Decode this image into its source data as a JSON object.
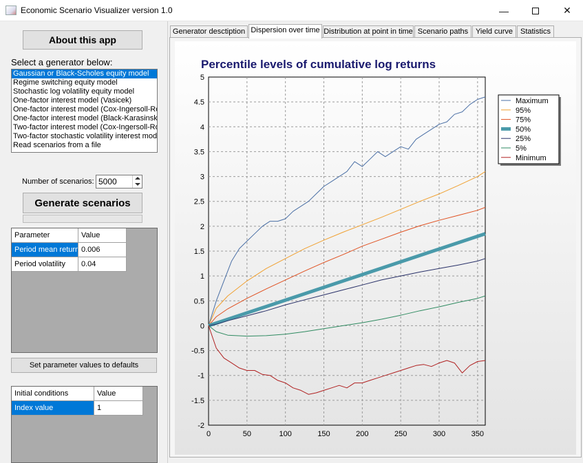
{
  "window": {
    "title": "Economic Scenario Visualizer version 1.0",
    "icon": "chart-app-icon",
    "controls": [
      "minimize",
      "maximize",
      "close"
    ]
  },
  "sidebar": {
    "about_label": "About this app",
    "select_label": "Select a generator below:",
    "generators": [
      "Gaussian or Black-Scholes equity model",
      "Regime switching equity model",
      "Stochastic log volatility equity model",
      "One-factor interest model (Vasicek)",
      "One-factor interest model (Cox-Ingersoll-Ross)",
      "One-factor interest model (Black-Karasinski)",
      "Two-factor interest model (Cox-Ingersoll-Ross)",
      "Two-factor stochastic volatility interest model",
      "Read scenarios from a file"
    ],
    "selected_generator": 0,
    "num_scenarios_label": "Number of scenarios:",
    "num_scenarios_value": "5000",
    "generate_label": "Generate scenarios",
    "progress": 0,
    "param_grid": {
      "headers": [
        "Parameter",
        "Value"
      ],
      "rows": [
        {
          "name": "Period mean return",
          "value": "0.006"
        },
        {
          "name": "Period volatility",
          "value": "0.04"
        }
      ]
    },
    "defaults_label": "Set parameter values to defaults",
    "init_grid": {
      "headers": [
        "Initial conditions",
        "Value"
      ],
      "rows": [
        {
          "name": "Index value",
          "value": "1"
        }
      ]
    }
  },
  "tabs": [
    {
      "label": "Generator desctiption",
      "active": false
    },
    {
      "label": "Dispersion over time",
      "active": true
    },
    {
      "label": "Distribution at point in time",
      "active": false
    },
    {
      "label": "Scenario paths",
      "active": false
    },
    {
      "label": "Yield curve",
      "active": false
    },
    {
      "label": "Statistics",
      "active": false
    }
  ],
  "chart_data": {
    "type": "line",
    "title": "Percentile levels of cumulative log returns",
    "xlabel": "",
    "ylabel": "",
    "xlim": [
      0,
      360
    ],
    "ylim": [
      -2,
      5
    ],
    "x_ticks": [
      0,
      50,
      100,
      150,
      200,
      250,
      300,
      350
    ],
    "y_ticks": [
      -2,
      -1.5,
      -1,
      -0.5,
      0,
      0.5,
      1,
      1.5,
      2,
      2.5,
      3,
      3.5,
      4,
      4.5,
      5
    ],
    "grid": true,
    "legend_position": "right",
    "series": [
      {
        "name": "Maximum",
        "color": "#4a6fa5",
        "width": 1,
        "points": [
          [
            0,
            0
          ],
          [
            10,
            0.5
          ],
          [
            20,
            0.9
          ],
          [
            30,
            1.3
          ],
          [
            40,
            1.55
          ],
          [
            50,
            1.7
          ],
          [
            60,
            1.85
          ],
          [
            70,
            2.0
          ],
          [
            80,
            2.1
          ],
          [
            90,
            2.1
          ],
          [
            100,
            2.15
          ],
          [
            110,
            2.3
          ],
          [
            120,
            2.4
          ],
          [
            130,
            2.5
          ],
          [
            140,
            2.65
          ],
          [
            150,
            2.8
          ],
          [
            160,
            2.9
          ],
          [
            170,
            3.0
          ],
          [
            180,
            3.1
          ],
          [
            190,
            3.3
          ],
          [
            200,
            3.2
          ],
          [
            210,
            3.35
          ],
          [
            220,
            3.5
          ],
          [
            230,
            3.4
          ],
          [
            240,
            3.5
          ],
          [
            250,
            3.6
          ],
          [
            260,
            3.55
          ],
          [
            270,
            3.75
          ],
          [
            280,
            3.85
          ],
          [
            290,
            3.95
          ],
          [
            300,
            4.05
          ],
          [
            310,
            4.1
          ],
          [
            320,
            4.25
          ],
          [
            330,
            4.3
          ],
          [
            340,
            4.45
          ],
          [
            350,
            4.55
          ],
          [
            360,
            4.6
          ]
        ]
      },
      {
        "name": "95%",
        "color": "#f0a030",
        "width": 1,
        "points": [
          [
            0,
            0
          ],
          [
            10,
            0.35
          ],
          [
            25,
            0.6
          ],
          [
            50,
            0.9
          ],
          [
            75,
            1.15
          ],
          [
            100,
            1.35
          ],
          [
            125,
            1.55
          ],
          [
            150,
            1.72
          ],
          [
            175,
            1.88
          ],
          [
            200,
            2.03
          ],
          [
            225,
            2.18
          ],
          [
            250,
            2.34
          ],
          [
            275,
            2.5
          ],
          [
            300,
            2.65
          ],
          [
            325,
            2.82
          ],
          [
            350,
            3.0
          ],
          [
            360,
            3.1
          ]
        ]
      },
      {
        "name": "75%",
        "color": "#e05020",
        "width": 1,
        "points": [
          [
            0,
            0
          ],
          [
            10,
            0.18
          ],
          [
            25,
            0.34
          ],
          [
            50,
            0.55
          ],
          [
            75,
            0.74
          ],
          [
            100,
            0.92
          ],
          [
            125,
            1.1
          ],
          [
            150,
            1.27
          ],
          [
            175,
            1.43
          ],
          [
            200,
            1.6
          ],
          [
            225,
            1.74
          ],
          [
            250,
            1.88
          ],
          [
            275,
            2.01
          ],
          [
            300,
            2.12
          ],
          [
            325,
            2.22
          ],
          [
            350,
            2.32
          ],
          [
            360,
            2.38
          ]
        ]
      },
      {
        "name": "50%",
        "color": "#4a9aaa",
        "width": 5,
        "points": [
          [
            0,
            0
          ],
          [
            360,
            1.85
          ]
        ]
      },
      {
        "name": "25%",
        "color": "#283068",
        "width": 1,
        "points": [
          [
            0,
            0
          ],
          [
            10,
            0.03
          ],
          [
            25,
            0.1
          ],
          [
            50,
            0.2
          ],
          [
            75,
            0.3
          ],
          [
            100,
            0.42
          ],
          [
            125,
            0.52
          ],
          [
            150,
            0.62
          ],
          [
            175,
            0.72
          ],
          [
            200,
            0.82
          ],
          [
            225,
            0.92
          ],
          [
            250,
            1.0
          ],
          [
            275,
            1.08
          ],
          [
            300,
            1.15
          ],
          [
            325,
            1.22
          ],
          [
            350,
            1.3
          ],
          [
            360,
            1.35
          ]
        ]
      },
      {
        "name": "5%",
        "color": "#2e8a60",
        "width": 1,
        "points": [
          [
            0,
            0
          ],
          [
            10,
            -0.12
          ],
          [
            25,
            -0.19
          ],
          [
            50,
            -0.21
          ],
          [
            75,
            -0.2
          ],
          [
            100,
            -0.17
          ],
          [
            125,
            -0.12
          ],
          [
            150,
            -0.06
          ],
          [
            175,
            0.0
          ],
          [
            200,
            0.06
          ],
          [
            225,
            0.13
          ],
          [
            250,
            0.21
          ],
          [
            275,
            0.3
          ],
          [
            300,
            0.38
          ],
          [
            325,
            0.47
          ],
          [
            350,
            0.55
          ],
          [
            360,
            0.6
          ]
        ]
      },
      {
        "name": "Minimum",
        "color": "#b02020",
        "width": 1,
        "points": [
          [
            0,
            0
          ],
          [
            10,
            -0.45
          ],
          [
            20,
            -0.65
          ],
          [
            30,
            -0.75
          ],
          [
            40,
            -0.85
          ],
          [
            50,
            -0.9
          ],
          [
            60,
            -0.9
          ],
          [
            70,
            -0.98
          ],
          [
            80,
            -1.0
          ],
          [
            90,
            -1.1
          ],
          [
            100,
            -1.15
          ],
          [
            110,
            -1.25
          ],
          [
            120,
            -1.3
          ],
          [
            130,
            -1.38
          ],
          [
            140,
            -1.35
          ],
          [
            150,
            -1.3
          ],
          [
            160,
            -1.25
          ],
          [
            170,
            -1.2
          ],
          [
            180,
            -1.25
          ],
          [
            190,
            -1.15
          ],
          [
            200,
            -1.15
          ],
          [
            210,
            -1.1
          ],
          [
            220,
            -1.05
          ],
          [
            230,
            -1.0
          ],
          [
            240,
            -0.95
          ],
          [
            250,
            -0.9
          ],
          [
            260,
            -0.85
          ],
          [
            270,
            -0.8
          ],
          [
            280,
            -0.78
          ],
          [
            290,
            -0.82
          ],
          [
            300,
            -0.75
          ],
          [
            310,
            -0.7
          ],
          [
            320,
            -0.75
          ],
          [
            330,
            -0.95
          ],
          [
            340,
            -0.8
          ],
          [
            350,
            -0.72
          ],
          [
            360,
            -0.7
          ]
        ]
      }
    ]
  }
}
